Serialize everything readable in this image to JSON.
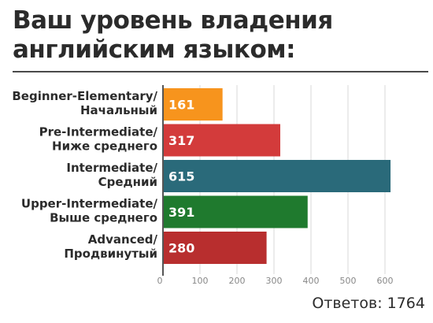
{
  "title_line1": "Ваш уровень владения",
  "title_line2": "английским языком:",
  "chart_data": {
    "type": "bar",
    "orientation": "horizontal",
    "categories": [
      [
        "Beginner-Elementary/",
        "Начальный"
      ],
      [
        "Pre-Intermediate/",
        "Ниже среднего"
      ],
      [
        "Intermediate/",
        "Средний"
      ],
      [
        "Upper-Intermediate/",
        "Выше среднего"
      ],
      [
        "Advanced/",
        "Продвинутый"
      ]
    ],
    "values": [
      161,
      317,
      615,
      391,
      280
    ],
    "colors": [
      "#f7941d",
      "#d33b3b",
      "#2a6a7a",
      "#1f7a2e",
      "#b82e2e"
    ],
    "xlim": [
      0,
      700
    ],
    "xticks": [
      0,
      100,
      200,
      300,
      400,
      500,
      600
    ],
    "grid": true
  },
  "footer": "Ответов: 1764"
}
